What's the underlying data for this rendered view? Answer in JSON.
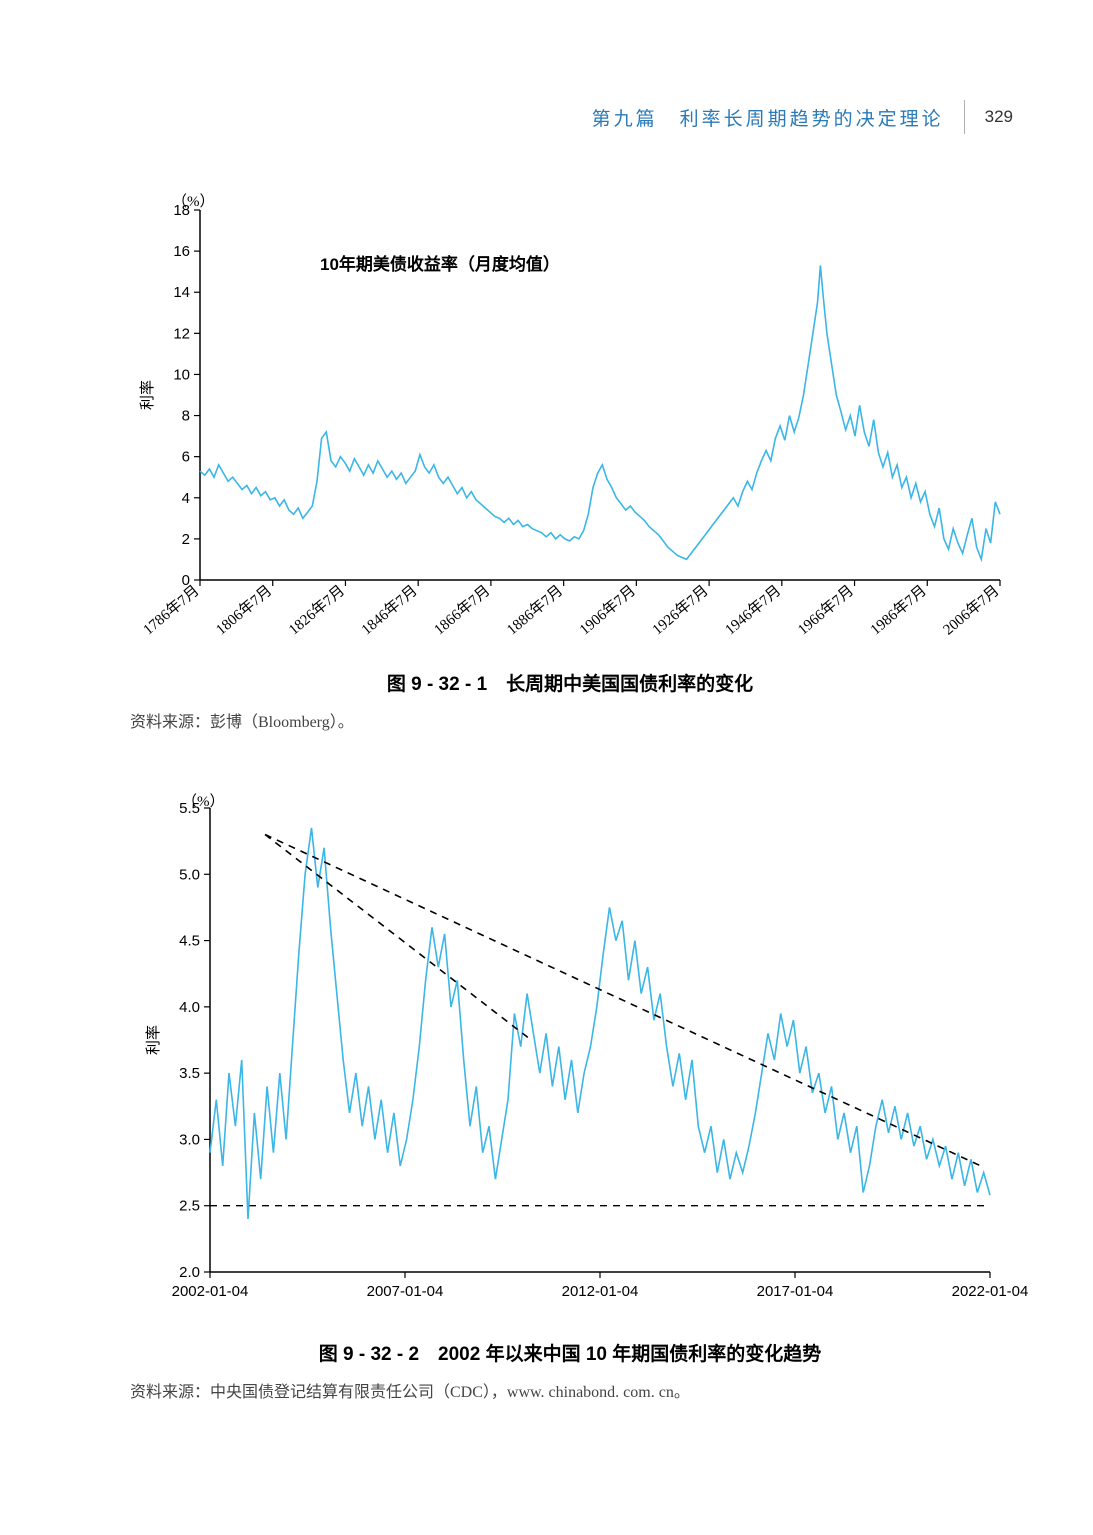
{
  "header": {
    "section_title": "第九篇　利率长周期趋势的决定理论",
    "page_number": "329",
    "title_color": "#2a7ab8"
  },
  "chart1": {
    "type": "line",
    "y_unit": "（%）",
    "y_axis_label": "利率",
    "series_label": "10年期美债收益率（月度均值）",
    "ylim": [
      0,
      18
    ],
    "ytick_step": 2,
    "yticks": [
      0,
      2,
      4,
      6,
      8,
      10,
      12,
      14,
      16,
      18
    ],
    "xticks": [
      "1786年7月",
      "1806年7月",
      "1826年7月",
      "1846年7月",
      "1866年7月",
      "1886年7月",
      "1906年7月",
      "1926年7月",
      "1946年7月",
      "1966年7月",
      "1986年7月",
      "2006年7月"
    ],
    "line_color": "#3bb6e6",
    "axis_color": "#000000",
    "line_width": 1.6,
    "background_color": "#ffffff",
    "caption": "图 9 - 32 - 1　长周期中美国国债利率的变化",
    "source": "资料来源：彭博（Bloomberg）。",
    "data": [
      [
        0,
        5.3
      ],
      [
        0.5,
        5.1
      ],
      [
        1,
        5.4
      ],
      [
        1.5,
        5.0
      ],
      [
        2,
        5.6
      ],
      [
        2.5,
        5.2
      ],
      [
        3,
        4.8
      ],
      [
        3.5,
        5.0
      ],
      [
        4,
        4.7
      ],
      [
        4.5,
        4.4
      ],
      [
        5,
        4.6
      ],
      [
        5.5,
        4.2
      ],
      [
        6,
        4.5
      ],
      [
        6.5,
        4.1
      ],
      [
        7,
        4.3
      ],
      [
        7.5,
        3.9
      ],
      [
        8,
        4.0
      ],
      [
        8.5,
        3.6
      ],
      [
        9,
        3.9
      ],
      [
        9.5,
        3.4
      ],
      [
        10,
        3.2
      ],
      [
        10.5,
        3.5
      ],
      [
        11,
        3.0
      ],
      [
        11.5,
        3.3
      ],
      [
        12,
        3.6
      ],
      [
        12.5,
        4.8
      ],
      [
        13,
        6.9
      ],
      [
        13.5,
        7.2
      ],
      [
        14,
        5.8
      ],
      [
        14.5,
        5.5
      ],
      [
        15,
        6.0
      ],
      [
        15.5,
        5.7
      ],
      [
        16,
        5.3
      ],
      [
        16.5,
        5.9
      ],
      [
        17,
        5.5
      ],
      [
        17.5,
        5.1
      ],
      [
        18,
        5.6
      ],
      [
        18.5,
        5.2
      ],
      [
        19,
        5.8
      ],
      [
        19.5,
        5.4
      ],
      [
        20,
        5.0
      ],
      [
        20.5,
        5.3
      ],
      [
        21,
        4.9
      ],
      [
        21.5,
        5.2
      ],
      [
        22,
        4.7
      ],
      [
        22.5,
        5.0
      ],
      [
        23,
        5.3
      ],
      [
        23.5,
        6.1
      ],
      [
        24,
        5.5
      ],
      [
        24.5,
        5.2
      ],
      [
        25,
        5.6
      ],
      [
        25.5,
        5.0
      ],
      [
        26,
        4.7
      ],
      [
        26.5,
        5.0
      ],
      [
        27,
        4.6
      ],
      [
        27.5,
        4.2
      ],
      [
        28,
        4.5
      ],
      [
        28.5,
        4.0
      ],
      [
        29,
        4.3
      ],
      [
        29.5,
        3.9
      ],
      [
        30,
        3.7
      ],
      [
        30.5,
        3.5
      ],
      [
        31,
        3.3
      ],
      [
        31.5,
        3.1
      ],
      [
        32,
        3.0
      ],
      [
        32.5,
        2.8
      ],
      [
        33,
        3.0
      ],
      [
        33.5,
        2.7
      ],
      [
        34,
        2.9
      ],
      [
        34.5,
        2.6
      ],
      [
        35,
        2.7
      ],
      [
        35.5,
        2.5
      ],
      [
        36,
        2.4
      ],
      [
        36.5,
        2.3
      ],
      [
        37,
        2.1
      ],
      [
        37.5,
        2.3
      ],
      [
        38,
        2.0
      ],
      [
        38.5,
        2.2
      ],
      [
        39,
        2.0
      ],
      [
        39.5,
        1.9
      ],
      [
        40,
        2.1
      ],
      [
        40.5,
        2.0
      ],
      [
        41,
        2.4
      ],
      [
        41.5,
        3.2
      ],
      [
        42,
        4.5
      ],
      [
        42.5,
        5.2
      ],
      [
        43,
        5.6
      ],
      [
        43.5,
        4.9
      ],
      [
        44,
        4.5
      ],
      [
        44.5,
        4.0
      ],
      [
        45,
        3.7
      ],
      [
        45.5,
        3.4
      ],
      [
        46,
        3.6
      ],
      [
        46.5,
        3.3
      ],
      [
        47,
        3.1
      ],
      [
        47.5,
        2.9
      ],
      [
        48,
        2.6
      ],
      [
        48.5,
        2.4
      ],
      [
        49,
        2.2
      ],
      [
        49.5,
        1.9
      ],
      [
        50,
        1.6
      ],
      [
        50.5,
        1.4
      ],
      [
        51,
        1.2
      ],
      [
        51.5,
        1.1
      ],
      [
        52,
        1.0
      ],
      [
        52.5,
        1.3
      ],
      [
        53,
        1.6
      ],
      [
        53.5,
        1.9
      ],
      [
        54,
        2.2
      ],
      [
        54.5,
        2.5
      ],
      [
        55,
        2.8
      ],
      [
        55.5,
        3.1
      ],
      [
        56,
        3.4
      ],
      [
        56.5,
        3.7
      ],
      [
        57,
        4.0
      ],
      [
        57.5,
        3.6
      ],
      [
        58,
        4.3
      ],
      [
        58.5,
        4.8
      ],
      [
        59,
        4.4
      ],
      [
        59.5,
        5.2
      ],
      [
        60,
        5.8
      ],
      [
        60.5,
        6.3
      ],
      [
        61,
        5.8
      ],
      [
        61.5,
        6.9
      ],
      [
        62,
        7.5
      ],
      [
        62.5,
        6.8
      ],
      [
        63,
        8.0
      ],
      [
        63.5,
        7.2
      ],
      [
        64,
        7.9
      ],
      [
        64.5,
        9.0
      ],
      [
        65,
        10.5
      ],
      [
        65.5,
        12.0
      ],
      [
        66,
        13.5
      ],
      [
        66.3,
        15.3
      ],
      [
        66.6,
        13.8
      ],
      [
        67,
        12.0
      ],
      [
        67.5,
        10.5
      ],
      [
        68,
        9.0
      ],
      [
        68.5,
        8.2
      ],
      [
        69,
        7.3
      ],
      [
        69.5,
        8.0
      ],
      [
        70,
        7.0
      ],
      [
        70.5,
        8.5
      ],
      [
        71,
        7.2
      ],
      [
        71.5,
        6.5
      ],
      [
        72,
        7.8
      ],
      [
        72.5,
        6.2
      ],
      [
        73,
        5.5
      ],
      [
        73.5,
        6.2
      ],
      [
        74,
        5.0
      ],
      [
        74.5,
        5.6
      ],
      [
        75,
        4.5
      ],
      [
        75.5,
        5.0
      ],
      [
        76,
        4.0
      ],
      [
        76.5,
        4.7
      ],
      [
        77,
        3.8
      ],
      [
        77.5,
        4.3
      ],
      [
        78,
        3.2
      ],
      [
        78.5,
        2.6
      ],
      [
        79,
        3.5
      ],
      [
        79.5,
        2.0
      ],
      [
        80,
        1.5
      ],
      [
        80.5,
        2.5
      ],
      [
        81,
        1.8
      ],
      [
        81.5,
        1.3
      ],
      [
        82,
        2.2
      ],
      [
        82.5,
        3.0
      ],
      [
        83,
        1.6
      ],
      [
        83.5,
        1.0
      ],
      [
        84,
        2.5
      ],
      [
        84.5,
        1.8
      ],
      [
        85,
        3.8
      ],
      [
        85.5,
        3.2
      ]
    ]
  },
  "chart2": {
    "type": "line",
    "y_unit": "（%）",
    "y_axis_label": "利率",
    "ylim": [
      2.0,
      5.5
    ],
    "ytick_step": 0.5,
    "yticks": [
      2.0,
      2.5,
      3.0,
      3.5,
      4.0,
      4.5,
      5.0,
      5.5
    ],
    "xticks": [
      "2002-01-04",
      "2007-01-04",
      "2012-01-04",
      "2017-01-04",
      "2022-01-04"
    ],
    "line_color": "#3bb6e6",
    "axis_color": "#000000",
    "line_width": 1.6,
    "background_color": "#ffffff",
    "caption": "图 9 - 32 - 2　2002 年以来中国 10 年期国债利率的变化趋势",
    "source": "资料来源：中央国债登记结算有限责任公司（CDC），www. chinabond. com. cn。",
    "horizontal_ref_line": {
      "y": 2.5,
      "style": "dashed",
      "color": "#000000"
    },
    "trend_line_upper": {
      "x1": 6,
      "y1": 5.3,
      "x2": 84,
      "y2": 2.8,
      "style": "dashed",
      "color": "#000000"
    },
    "trend_line_lower": {
      "x1": 6,
      "y1": 5.3,
      "x2": 35,
      "y2": 3.75,
      "style": "dashed",
      "color": "#000000"
    },
    "data": [
      [
        0,
        2.9
      ],
      [
        0.5,
        3.3
      ],
      [
        1,
        2.8
      ],
      [
        1.5,
        3.5
      ],
      [
        2,
        3.1
      ],
      [
        2.5,
        3.6
      ],
      [
        3,
        2.4
      ],
      [
        3.5,
        3.2
      ],
      [
        4,
        2.7
      ],
      [
        4.5,
        3.4
      ],
      [
        5,
        2.9
      ],
      [
        5.5,
        3.5
      ],
      [
        6,
        3.0
      ],
      [
        6.5,
        3.7
      ],
      [
        7,
        4.4
      ],
      [
        7.5,
        5.0
      ],
      [
        8,
        5.35
      ],
      [
        8.5,
        4.9
      ],
      [
        9,
        5.2
      ],
      [
        9.5,
        4.6
      ],
      [
        10,
        4.1
      ],
      [
        10.5,
        3.6
      ],
      [
        11,
        3.2
      ],
      [
        11.5,
        3.5
      ],
      [
        12,
        3.1
      ],
      [
        12.5,
        3.4
      ],
      [
        13,
        3.0
      ],
      [
        13.5,
        3.3
      ],
      [
        14,
        2.9
      ],
      [
        14.5,
        3.2
      ],
      [
        15,
        2.8
      ],
      [
        15.5,
        3.0
      ],
      [
        16,
        3.3
      ],
      [
        16.5,
        3.7
      ],
      [
        17,
        4.2
      ],
      [
        17.5,
        4.6
      ],
      [
        18,
        4.3
      ],
      [
        18.5,
        4.55
      ],
      [
        19,
        4.0
      ],
      [
        19.5,
        4.2
      ],
      [
        20,
        3.6
      ],
      [
        20.5,
        3.1
      ],
      [
        21,
        3.4
      ],
      [
        21.5,
        2.9
      ],
      [
        22,
        3.1
      ],
      [
        22.5,
        2.7
      ],
      [
        23,
        3.0
      ],
      [
        23.5,
        3.3
      ],
      [
        24,
        3.95
      ],
      [
        24.5,
        3.7
      ],
      [
        25,
        4.1
      ],
      [
        25.5,
        3.8
      ],
      [
        26,
        3.5
      ],
      [
        26.5,
        3.8
      ],
      [
        27,
        3.4
      ],
      [
        27.5,
        3.7
      ],
      [
        28,
        3.3
      ],
      [
        28.5,
        3.6
      ],
      [
        29,
        3.2
      ],
      [
        29.5,
        3.5
      ],
      [
        30,
        3.7
      ],
      [
        30.5,
        4.0
      ],
      [
        31,
        4.4
      ],
      [
        31.5,
        4.75
      ],
      [
        32,
        4.5
      ],
      [
        32.5,
        4.65
      ],
      [
        33,
        4.2
      ],
      [
        33.5,
        4.5
      ],
      [
        34,
        4.1
      ],
      [
        34.5,
        4.3
      ],
      [
        35,
        3.9
      ],
      [
        35.5,
        4.1
      ],
      [
        36,
        3.7
      ],
      [
        36.5,
        3.4
      ],
      [
        37,
        3.65
      ],
      [
        37.5,
        3.3
      ],
      [
        38,
        3.6
      ],
      [
        38.5,
        3.1
      ],
      [
        39,
        2.9
      ],
      [
        39.5,
        3.1
      ],
      [
        40,
        2.75
      ],
      [
        40.5,
        3.0
      ],
      [
        41,
        2.7
      ],
      [
        41.5,
        2.9
      ],
      [
        42,
        2.75
      ],
      [
        42.5,
        2.95
      ],
      [
        43,
        3.2
      ],
      [
        43.5,
        3.5
      ],
      [
        44,
        3.8
      ],
      [
        44.5,
        3.6
      ],
      [
        45,
        3.95
      ],
      [
        45.5,
        3.7
      ],
      [
        46,
        3.9
      ],
      [
        46.5,
        3.5
      ],
      [
        47,
        3.7
      ],
      [
        47.5,
        3.35
      ],
      [
        48,
        3.5
      ],
      [
        48.5,
        3.2
      ],
      [
        49,
        3.4
      ],
      [
        49.5,
        3.0
      ],
      [
        50,
        3.2
      ],
      [
        50.5,
        2.9
      ],
      [
        51,
        3.1
      ],
      [
        51.5,
        2.6
      ],
      [
        52,
        2.8
      ],
      [
        52.5,
        3.1
      ],
      [
        53,
        3.3
      ],
      [
        53.5,
        3.05
      ],
      [
        54,
        3.25
      ],
      [
        54.5,
        3.0
      ],
      [
        55,
        3.2
      ],
      [
        55.5,
        2.95
      ],
      [
        56,
        3.1
      ],
      [
        56.5,
        2.85
      ],
      [
        57,
        3.0
      ],
      [
        57.5,
        2.8
      ],
      [
        58,
        2.95
      ],
      [
        58.5,
        2.7
      ],
      [
        59,
        2.9
      ],
      [
        59.5,
        2.65
      ],
      [
        60,
        2.85
      ],
      [
        60.5,
        2.6
      ],
      [
        61,
        2.75
      ],
      [
        61.5,
        2.58
      ]
    ]
  }
}
